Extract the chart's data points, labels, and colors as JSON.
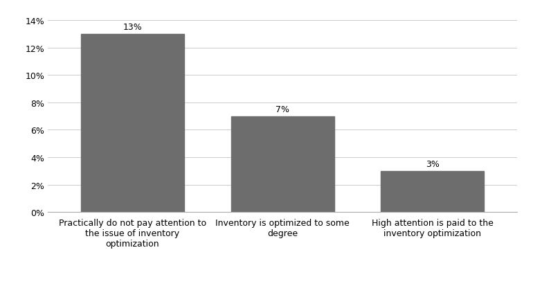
{
  "categories": [
    "Practically do not pay attention to\nthe issue of inventory\noptimization",
    "Inventory is optimized to some\ndegree",
    "High attention is paid to the\ninventory optimization"
  ],
  "values": [
    0.13,
    0.07,
    0.03
  ],
  "labels": [
    "13%",
    "7%",
    "3%"
  ],
  "bar_color": "#6d6d6d",
  "bar_width": 0.22,
  "x_positions": [
    0.18,
    0.5,
    0.82
  ],
  "xlim": [
    0.0,
    1.0
  ],
  "ylim": [
    0,
    0.14
  ],
  "yticks": [
    0.0,
    0.02,
    0.04,
    0.06,
    0.08,
    0.1,
    0.12,
    0.14
  ],
  "ytick_labels": [
    "0%",
    "2%",
    "4%",
    "6%",
    "8%",
    "10%",
    "12%",
    "14%"
  ],
  "background_color": "#ffffff",
  "grid_color": "#cccccc",
  "font_size": 9,
  "label_font_size": 9
}
